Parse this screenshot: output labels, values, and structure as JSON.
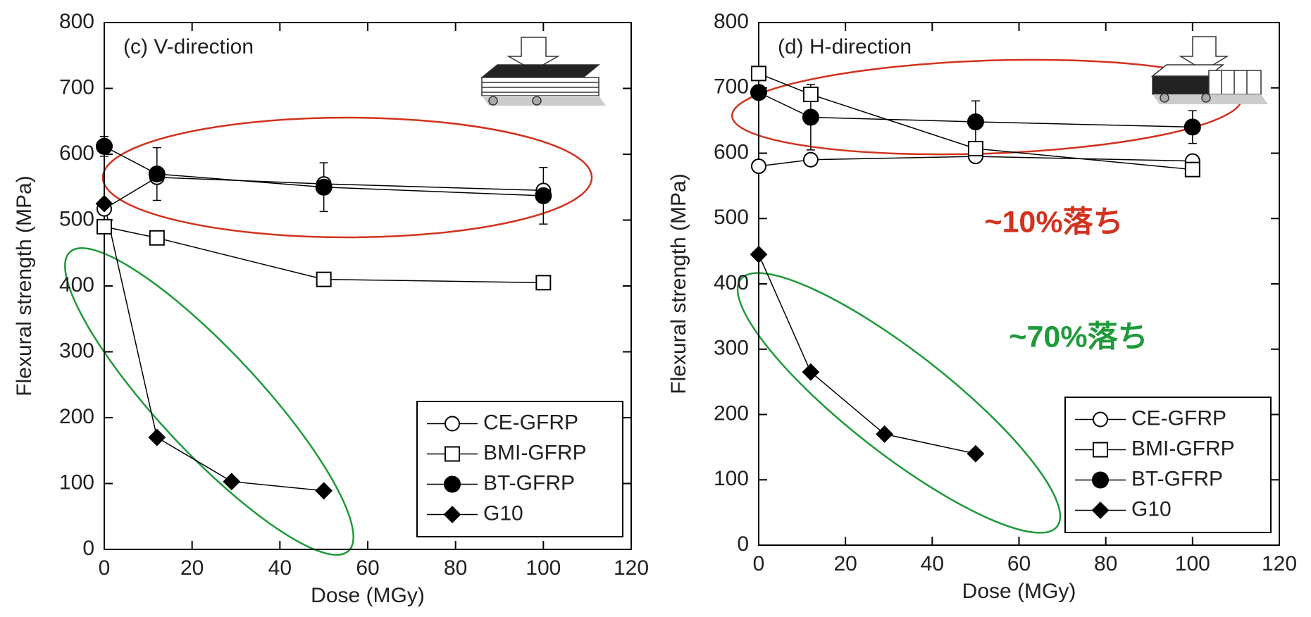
{
  "chart_data": [
    {
      "type": "line",
      "title": "(c) V-direction",
      "xlabel": "Dose (MGy)",
      "ylabel": "Flexural strength (MPa)",
      "xlim": [
        0,
        120
      ],
      "xticks": [
        0,
        20,
        40,
        60,
        80,
        100,
        120
      ],
      "ylim": [
        0,
        800
      ],
      "yticks": [
        0,
        100,
        200,
        300,
        400,
        500,
        600,
        700,
        800
      ],
      "legend": "lower right",
      "series": [
        {
          "name": "CE-GFRP",
          "color": "#000000",
          "marker": "circle-open",
          "x": [
            0,
            12,
            50,
            100
          ],
          "values": [
            517,
            565,
            555,
            545
          ]
        },
        {
          "name": "BMI-GFRP",
          "color": "#000000",
          "marker": "square-open",
          "x": [
            0,
            12,
            50,
            100
          ],
          "values": [
            490,
            473,
            410,
            405
          ]
        },
        {
          "name": "BT-GFRP",
          "color": "#000000",
          "marker": "circle",
          "x": [
            0,
            12,
            50,
            100
          ],
          "values": [
            612,
            570,
            550,
            537
          ],
          "errors": [
            15,
            40,
            37,
            43
          ]
        },
        {
          "name": "G10",
          "color": "#000000",
          "marker": "diamond",
          "x": [
            0,
            12,
            29,
            50
          ],
          "values": [
            525,
            170,
            103,
            89
          ]
        }
      ]
    },
    {
      "type": "line",
      "title": "(d) H-direction",
      "xlabel": "Dose (MGy)",
      "ylabel": "Flexural strength (MPa)",
      "xlim": [
        0,
        120
      ],
      "xticks": [
        0,
        20,
        40,
        60,
        80,
        100,
        120
      ],
      "ylim": [
        0,
        800
      ],
      "yticks": [
        0,
        100,
        200,
        300,
        400,
        500,
        600,
        700,
        800
      ],
      "legend": "lower right",
      "annotations": [
        {
          "text": "~10%落ち",
          "color": "#d2321e"
        },
        {
          "text": "~70%落ち",
          "color": "#1f9a3a"
        }
      ],
      "series": [
        {
          "name": "CE-GFRP",
          "color": "#000000",
          "marker": "circle-open",
          "x": [
            0,
            12,
            50,
            100
          ],
          "values": [
            580,
            590,
            595,
            588
          ]
        },
        {
          "name": "BMI-GFRP",
          "color": "#000000",
          "marker": "square-open",
          "x": [
            0,
            12,
            50,
            100
          ],
          "values": [
            722,
            690,
            607,
            575
          ]
        },
        {
          "name": "BT-GFRP",
          "color": "#000000",
          "marker": "circle",
          "x": [
            0,
            12,
            50,
            100
          ],
          "values": [
            693,
            655,
            648,
            640
          ],
          "errors": [
            10,
            50,
            32,
            25
          ]
        },
        {
          "name": "G10",
          "color": "#000000",
          "marker": "diamond",
          "x": [
            0,
            12,
            29,
            50
          ],
          "values": [
            445,
            265,
            170,
            140
          ]
        }
      ]
    }
  ]
}
